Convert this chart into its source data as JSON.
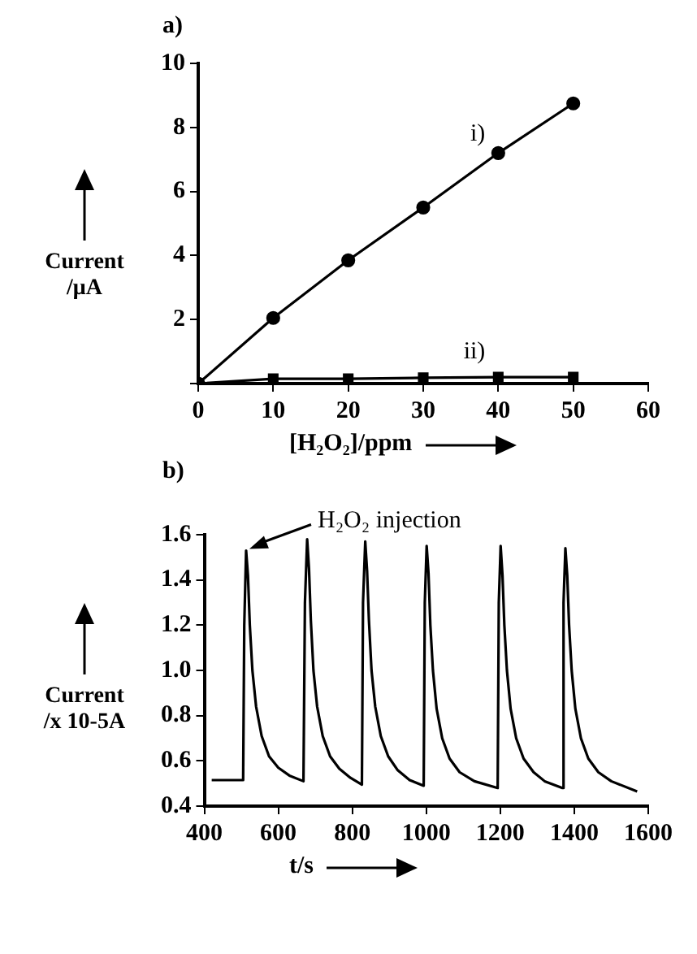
{
  "chart_data": [
    {
      "type": "line",
      "title": "a)",
      "xlabel": "[H₂O₂]/ppm",
      "ylabel": "Current /μA",
      "xlim": [
        0,
        60
      ],
      "ylim": [
        0,
        10
      ],
      "xticks": [
        0,
        10,
        20,
        30,
        40,
        50,
        60
      ],
      "yticks": [
        {
          "value": 0,
          "label": null
        },
        2,
        4,
        6,
        8,
        10
      ],
      "grid": false,
      "legend": false,
      "line_style": "solid",
      "series": [
        {
          "name": "i)",
          "color": "#000000",
          "marker": "circle",
          "x": [
            0,
            10,
            20,
            30,
            40,
            50
          ],
          "values": [
            0,
            2.05,
            3.85,
            5.5,
            7.2,
            8.75
          ]
        },
        {
          "name": "ii)",
          "color": "#000000",
          "marker": "square",
          "x": [
            0,
            10,
            20,
            30,
            40,
            50
          ],
          "values": [
            0,
            0.15,
            0.15,
            0.18,
            0.2,
            0.2
          ]
        }
      ]
    },
    {
      "type": "line",
      "title": "b)",
      "xlabel": "t/s",
      "ylabel": "Current /x 10-5A",
      "xlim": [
        400,
        1600
      ],
      "ylim": [
        0.4,
        1.6
      ],
      "xticks": [
        400,
        600,
        800,
        1000,
        1200,
        1400,
        1600
      ],
      "yticks": [
        0.4,
        0.6,
        0.8,
        {
          "value": 1,
          "label": "1.0"
        },
        1.2,
        1.4,
        1.6
      ],
      "grid": false,
      "legend": false,
      "marker": "none",
      "line_style": "solid",
      "annotations": [
        {
          "text": "H₂O₂ injection",
          "x": 513,
          "y": 1.53
        }
      ],
      "series": [
        {
          "color": "#000000",
          "x": [
            420,
            505,
            508,
            513,
            518,
            523,
            530,
            540,
            555,
            575,
            600,
            630,
            668,
            672,
            678,
            683,
            688,
            695,
            705,
            720,
            740,
            765,
            795,
            826,
            829,
            835,
            840,
            845,
            852,
            862,
            877,
            897,
            922,
            955,
            993,
            996,
            1001,
            1006,
            1011,
            1018,
            1028,
            1043,
            1063,
            1090,
            1130,
            1193,
            1196,
            1201,
            1206,
            1211,
            1218,
            1228,
            1243,
            1263,
            1290,
            1320,
            1368,
            1371,
            1376,
            1381,
            1386,
            1393,
            1403,
            1418,
            1438,
            1465,
            1500,
            1570
          ],
          "values": [
            0.515,
            0.515,
            1.2,
            1.53,
            1.42,
            1.2,
            1.0,
            0.84,
            0.71,
            0.62,
            0.57,
            0.535,
            0.51,
            1.3,
            1.58,
            1.45,
            1.22,
            1.0,
            0.84,
            0.71,
            0.62,
            0.565,
            0.525,
            0.495,
            1.3,
            1.57,
            1.44,
            1.22,
            1.0,
            0.84,
            0.71,
            0.62,
            0.56,
            0.515,
            0.49,
            1.3,
            1.55,
            1.43,
            1.2,
            1.0,
            0.83,
            0.7,
            0.61,
            0.55,
            0.51,
            0.48,
            1.3,
            1.55,
            1.42,
            1.2,
            1.0,
            0.83,
            0.7,
            0.61,
            0.55,
            0.51,
            0.48,
            1.3,
            1.54,
            1.42,
            1.2,
            1.0,
            0.83,
            0.7,
            0.61,
            0.55,
            0.51,
            0.465
          ]
        }
      ]
    }
  ]
}
